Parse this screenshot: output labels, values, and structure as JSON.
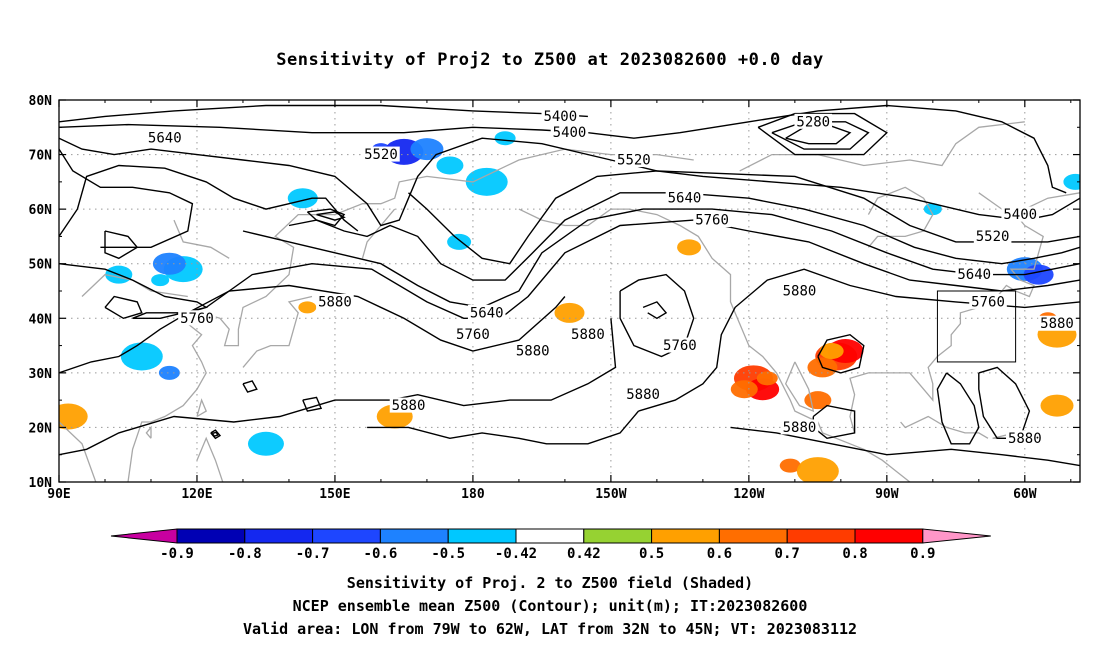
{
  "title": "Sensitivity of Proj2 to Z500 at 2023082600 +0.0 day",
  "captions": {
    "line1": "Sensitivity of Proj. 2 to Z500 field (Shaded)",
    "line2": "NCEP ensemble mean Z500 (Contour); unit(m); IT:2023082600",
    "line3": "Valid area: LON from 79W to 62W, LAT from 32N to 45N; VT: 2023083112"
  },
  "map": {
    "lat_labels": [
      "80N",
      "70N",
      "60N",
      "50N",
      "40N",
      "30N",
      "20N",
      "10N"
    ],
    "lon_labels": [
      "90E",
      "120E",
      "150E",
      "180",
      "150W",
      "120W",
      "90W",
      "60W"
    ],
    "lon_range": [
      90,
      312
    ],
    "lat_range": [
      10,
      80
    ],
    "valid_box": {
      "lon": [
        281,
        298
      ],
      "lat": [
        32,
        45
      ]
    }
  },
  "contours": {
    "labels": [
      {
        "text": "5400",
        "lon": 199,
        "lat": 77
      },
      {
        "text": "5400",
        "lon": 201,
        "lat": 74
      },
      {
        "text": "5280",
        "lon": 254,
        "lat": 76
      },
      {
        "text": "5640",
        "lon": 113,
        "lat": 73
      },
      {
        "text": "5520",
        "lon": 160,
        "lat": 70
      },
      {
        "text": "5520",
        "lon": 215,
        "lat": 69
      },
      {
        "text": "5640",
        "lon": 226,
        "lat": 62
      },
      {
        "text": "5760",
        "lon": 232,
        "lat": 58
      },
      {
        "text": "5400",
        "lon": 299,
        "lat": 59
      },
      {
        "text": "5520",
        "lon": 293,
        "lat": 55
      },
      {
        "text": "5640",
        "lon": 289,
        "lat": 48
      },
      {
        "text": "5880",
        "lon": 150,
        "lat": 43
      },
      {
        "text": "5760",
        "lon": 120,
        "lat": 40
      },
      {
        "text": "5640",
        "lon": 183,
        "lat": 41
      },
      {
        "text": "5760",
        "lon": 180,
        "lat": 37
      },
      {
        "text": "5880",
        "lon": 205,
        "lat": 37
      },
      {
        "text": "5880",
        "lon": 193,
        "lat": 34
      },
      {
        "text": "5760",
        "lon": 225,
        "lat": 35
      },
      {
        "text": "5880",
        "lon": 251,
        "lat": 45
      },
      {
        "text": "5760",
        "lon": 292,
        "lat": 43
      },
      {
        "text": "5880",
        "lon": 307,
        "lat": 39
      },
      {
        "text": "5880",
        "lon": 166,
        "lat": 24
      },
      {
        "text": "5880",
        "lon": 217,
        "lat": 26
      },
      {
        "text": "5880",
        "lon": 251,
        "lat": 20
      },
      {
        "text": "5880",
        "lon": 300,
        "lat": 18
      }
    ]
  },
  "colorbar": {
    "labels": [
      "-0.9",
      "-0.8",
      "-0.7",
      "-0.6",
      "-0.5",
      "-0.42",
      "0.42",
      "0.5",
      "0.6",
      "0.7",
      "0.8",
      "0.9"
    ],
    "colors": [
      "#c800a0",
      "#0000b4",
      "#1428f0",
      "#1e46ff",
      "#1e82ff",
      "#00c8ff",
      "#ffffff",
      "#96d232",
      "#ffa000",
      "#ff6e00",
      "#ff3c00",
      "#ff0000",
      "#ff96c8"
    ]
  },
  "colors": {
    "coast": "#a8a8a8",
    "grid": "#9a9a9a",
    "contour": "#000000"
  },
  "sensitivity_patches": [
    {
      "lon": 160,
      "lat": 71,
      "v": -0.7
    },
    {
      "lon": 165,
      "lat": 70.5,
      "v": -0.8
    },
    {
      "lon": 170,
      "lat": 71,
      "v": -0.6
    },
    {
      "lon": 175,
      "lat": 68,
      "v": -0.5
    },
    {
      "lon": 187,
      "lat": 73,
      "v": -0.5
    },
    {
      "lon": 183,
      "lat": 65,
      "v": -0.5
    },
    {
      "lon": 300,
      "lat": 49,
      "v": -0.6
    },
    {
      "lon": 303,
      "lat": 48,
      "v": -0.7
    },
    {
      "lon": 311,
      "lat": 65,
      "v": -0.5
    },
    {
      "lon": 112,
      "lat": 47,
      "v": -0.5
    },
    {
      "lon": 117,
      "lat": 49,
      "v": -0.5
    },
    {
      "lon": 114,
      "lat": 50,
      "v": -0.6
    },
    {
      "lon": 103,
      "lat": 48,
      "v": -0.5
    },
    {
      "lon": 114,
      "lat": 30,
      "v": -0.6
    },
    {
      "lon": 108,
      "lat": 33,
      "v": -0.5
    },
    {
      "lon": 135,
      "lat": 17,
      "v": -0.5
    },
    {
      "lon": 143,
      "lat": 62,
      "v": -0.5
    },
    {
      "lon": 177,
      "lat": 54,
      "v": -0.5
    },
    {
      "lon": 280,
      "lat": 60,
      "v": -0.5
    },
    {
      "lon": 241,
      "lat": 29,
      "v": 0.7
    },
    {
      "lon": 243,
      "lat": 27,
      "v": 0.8
    },
    {
      "lon": 239,
      "lat": 27,
      "v": 0.6
    },
    {
      "lon": 244,
      "lat": 29,
      "v": 0.6
    },
    {
      "lon": 259,
      "lat": 33,
      "v": 0.7
    },
    {
      "lon": 261,
      "lat": 34,
      "v": 0.8
    },
    {
      "lon": 256,
      "lat": 31,
      "v": 0.6
    },
    {
      "lon": 258,
      "lat": 34,
      "v": 0.5
    },
    {
      "lon": 305,
      "lat": 40,
      "v": 0.6
    },
    {
      "lon": 307,
      "lat": 37,
      "v": 0.5
    },
    {
      "lon": 307,
      "lat": 24,
      "v": 0.5
    },
    {
      "lon": 255,
      "lat": 25,
      "v": 0.6
    },
    {
      "lon": 249,
      "lat": 13,
      "v": 0.6
    },
    {
      "lon": 255,
      "lat": 12,
      "v": 0.5
    },
    {
      "lon": 163,
      "lat": 22,
      "v": 0.5
    },
    {
      "lon": 201,
      "lat": 41,
      "v": 0.5
    },
    {
      "lon": 227,
      "lat": 53,
      "v": 0.5
    },
    {
      "lon": 144,
      "lat": 42,
      "v": 0.5
    },
    {
      "lon": 92,
      "lat": 22,
      "v": 0.5
    }
  ]
}
